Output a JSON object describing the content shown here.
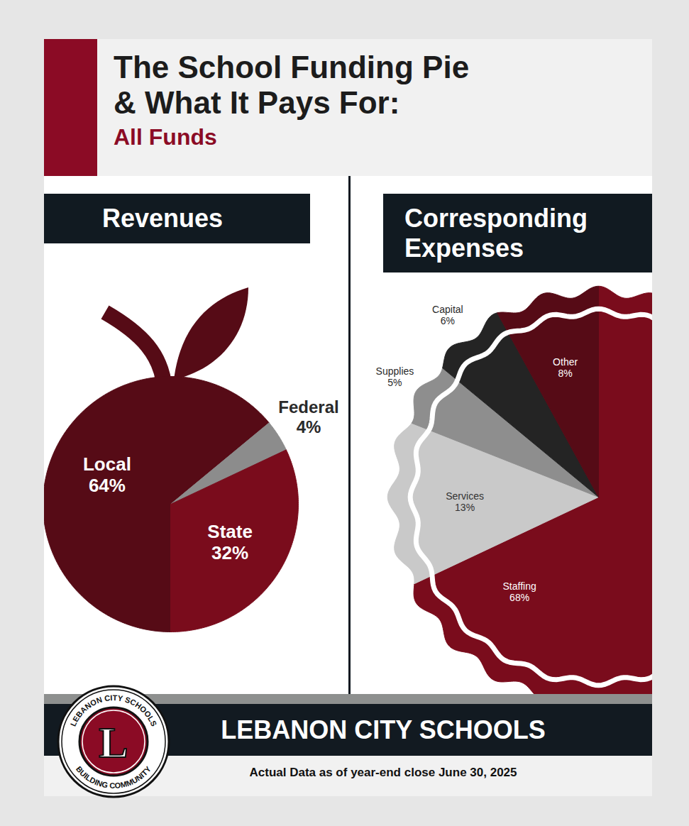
{
  "page": {
    "title": [
      "The School Funding Pie",
      "& What It Pays For:"
    ],
    "subtitle": "All Funds",
    "footer": "LEBANON CITY SCHOOLS",
    "caption": "Actual Data as of year-end close June 30, 2025",
    "logo": {
      "top_text": "LEBANON CITY SCHOOLS",
      "bottom_text": "BUILDING COMMUNITY",
      "letter": "L"
    }
  },
  "chart_data": [
    {
      "type": "pie",
      "title": "Revenues",
      "categories": [
        "Local",
        "Federal",
        "State"
      ],
      "values": [
        64,
        4,
        32
      ],
      "value_labels": [
        "64%",
        "4%",
        "32%"
      ],
      "colors": [
        "#560b16",
        "#8c8c8c",
        "#7a0c1c"
      ],
      "data_labels": true
    },
    {
      "type": "pie",
      "title": "Corresponding Expenses",
      "categories": [
        "Staffing",
        "Services",
        "Supplies",
        "Capital",
        "Other"
      ],
      "values": [
        68,
        13,
        5,
        6,
        8
      ],
      "value_labels": [
        "68%",
        "13%",
        "5%",
        "6%",
        "8%"
      ],
      "colors": [
        "#7a0c1c",
        "#c9c9c9",
        "#8e8e8e",
        "#242424",
        "#560b16"
      ],
      "data_labels": true
    }
  ]
}
